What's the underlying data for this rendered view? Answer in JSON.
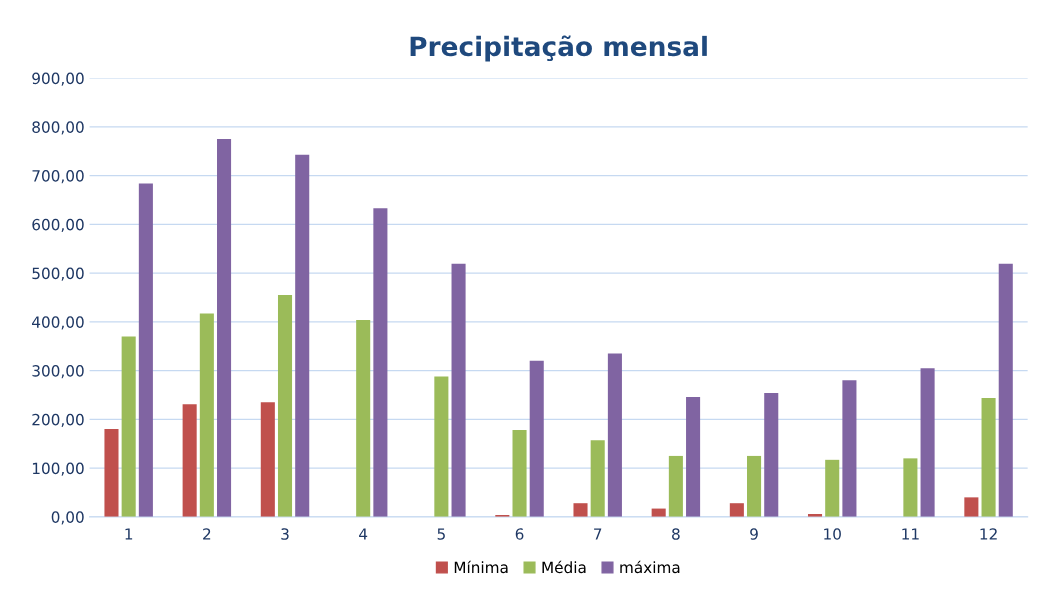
{
  "chart_data": {
    "type": "bar",
    "title": "Precipitação mensal",
    "categories": [
      "1",
      "2",
      "3",
      "4",
      "5",
      "6",
      "7",
      "8",
      "9",
      "10",
      "11",
      "12"
    ],
    "series": [
      {
        "name": "Mínima",
        "color": "#c0504d",
        "values": [
          180,
          231,
          235,
          0,
          0,
          4,
          28,
          17,
          28,
          6,
          0,
          40
        ]
      },
      {
        "name": "Média",
        "color": "#9bbb59",
        "values": [
          370,
          417,
          455,
          404,
          288,
          178,
          157,
          125,
          125,
          117,
          120,
          244
        ]
      },
      {
        "name": "máxima",
        "color": "#8064a2",
        "values": [
          684,
          775,
          743,
          633,
          519,
          320,
          335,
          246,
          254,
          280,
          305,
          519
        ]
      }
    ],
    "ylim": [
      0,
      900
    ],
    "yticks": [
      {
        "value": 0,
        "label": "0,00"
      },
      {
        "value": 100,
        "label": "100,00"
      },
      {
        "value": 200,
        "label": "200,00"
      },
      {
        "value": 300,
        "label": "300,00"
      },
      {
        "value": 400,
        "label": "400,00"
      },
      {
        "value": 500,
        "label": "500,00"
      },
      {
        "value": 600,
        "label": "600,00"
      },
      {
        "value": 700,
        "label": "700,00"
      },
      {
        "value": 800,
        "label": "800,00"
      },
      {
        "value": 900,
        "label": "900,00"
      }
    ],
    "grid": "y",
    "legend": "bottom"
  }
}
